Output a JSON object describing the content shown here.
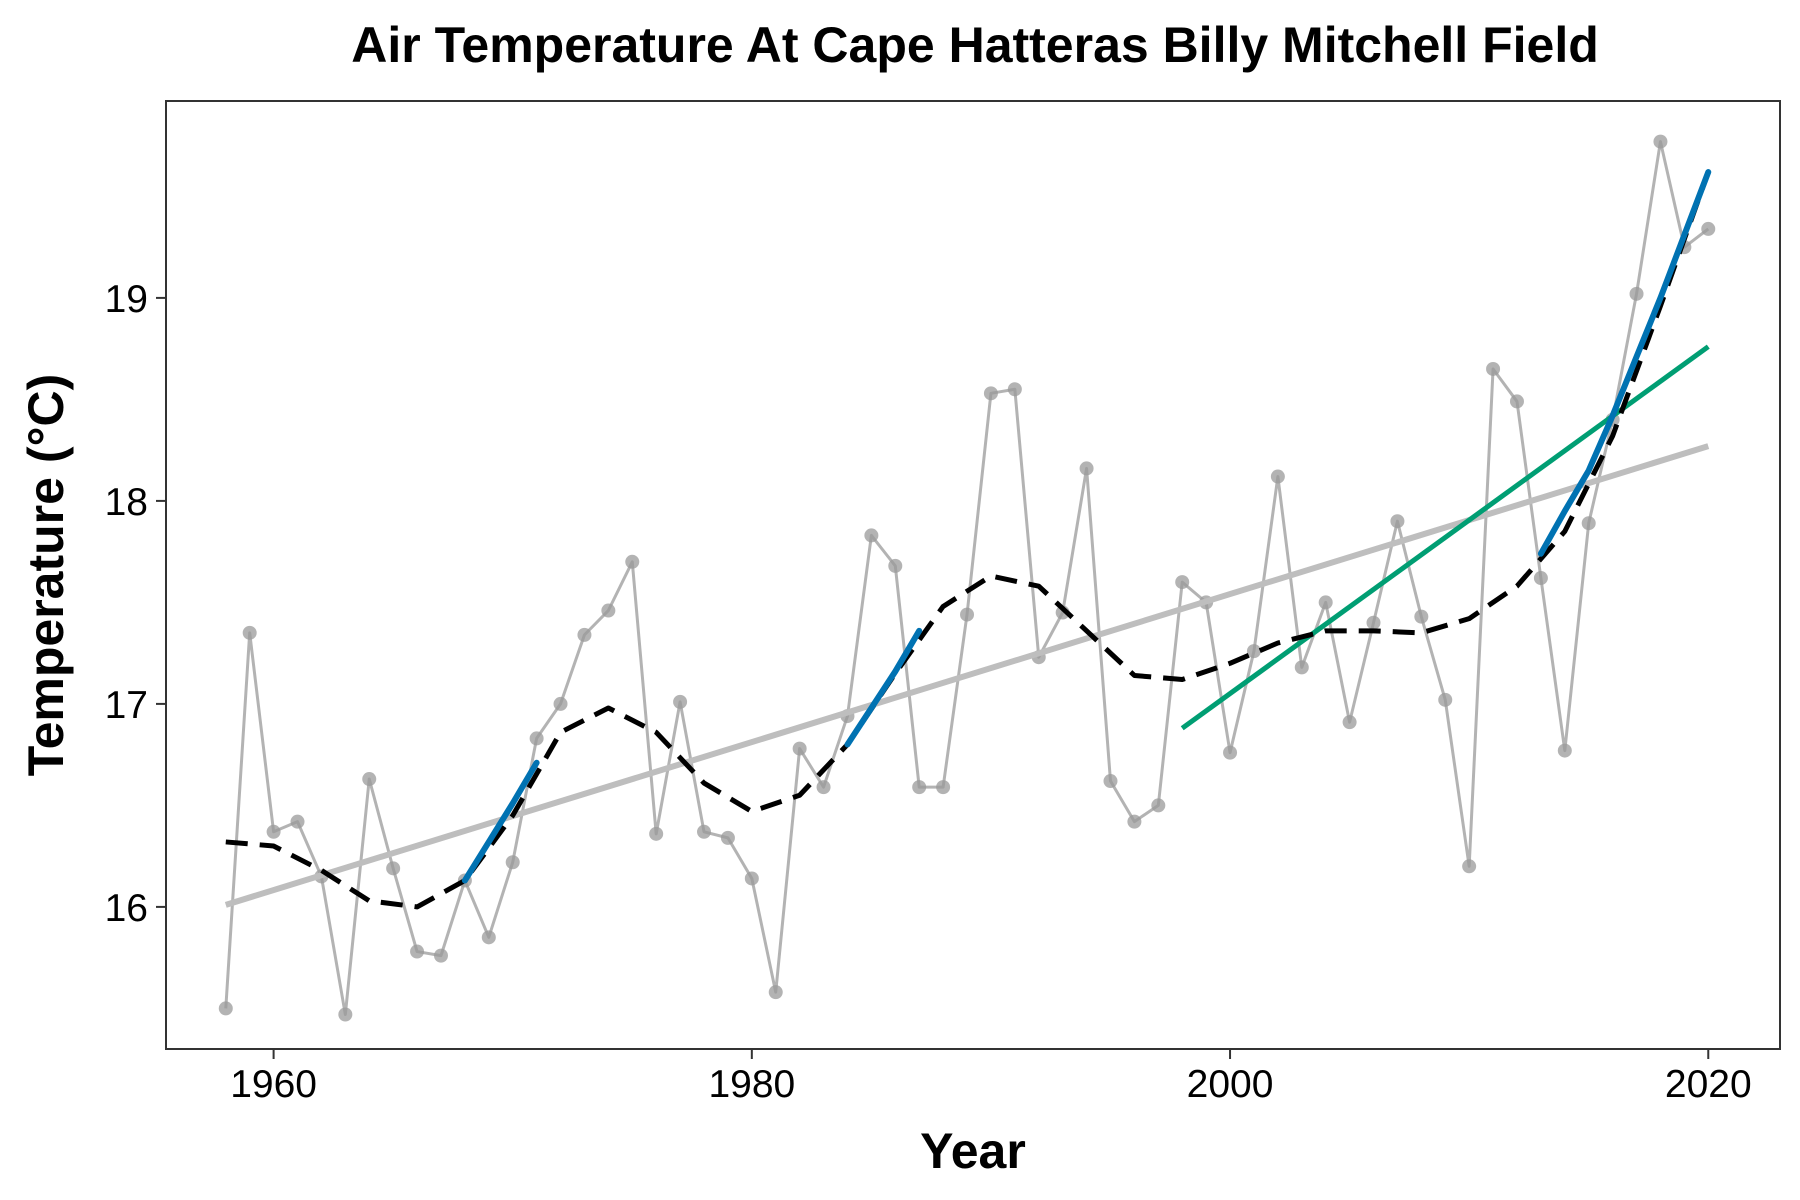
{
  "chart_data": {
    "type": "line",
    "title": "Air Temperature At Cape Hatteras Billy Mitchell Field",
    "xlabel": "Year",
    "ylabel": "Temperature (°C)",
    "xlim": [
      1955.5,
      2023
    ],
    "ylim": [
      15.3,
      19.97
    ],
    "x_ticks": [
      1960,
      1980,
      2000,
      2020
    ],
    "y_ticks": [
      16,
      17,
      18,
      19
    ],
    "grid": false,
    "legend": "none",
    "colors": {
      "observed": "#999999",
      "smooth": "#000000",
      "significant_increase": "#0072B2",
      "recent_trend": "#009E73",
      "long_term_trend": "#BEBEBE",
      "frame": "#333333"
    },
    "series": [
      {
        "key": "observed",
        "x": [
          1958,
          1959,
          1960,
          1961,
          1962,
          1963,
          1964,
          1965,
          1966,
          1967,
          1968,
          1969,
          1970,
          1971,
          1972,
          1973,
          1974,
          1975,
          1976,
          1977,
          1978,
          1979,
          1980,
          1981,
          1982,
          1983,
          1984,
          1985,
          1986,
          1987,
          1988,
          1989,
          1990,
          1991,
          1992,
          1993,
          1994,
          1995,
          1996,
          1997,
          1998,
          1999,
          2000,
          2001,
          2002,
          2003,
          2004,
          2005,
          2006,
          2007,
          2008,
          2009,
          2010,
          2011,
          2012,
          2013,
          2014,
          2015,
          2016,
          2017,
          2018,
          2019,
          2020
        ],
        "values": [
          15.5,
          17.35,
          16.37,
          16.42,
          16.15,
          15.47,
          16.63,
          16.19,
          15.78,
          15.76,
          16.13,
          15.85,
          16.22,
          16.83,
          17.0,
          17.34,
          17.46,
          17.7,
          16.36,
          17.01,
          16.37,
          16.34,
          16.14,
          15.58,
          16.78,
          16.59,
          16.94,
          17.83,
          17.68,
          16.59,
          16.59,
          17.44,
          18.53,
          18.55,
          17.23,
          17.45,
          18.16,
          16.62,
          16.42,
          16.5,
          17.6,
          17.5,
          16.76,
          17.26,
          18.12,
          17.18,
          17.5,
          16.91,
          17.4,
          17.9,
          17.43,
          17.02,
          16.2,
          18.65,
          18.49,
          17.62,
          16.77,
          17.89,
          18.4,
          19.02,
          19.77,
          19.25,
          19.34
        ]
      },
      {
        "key": "smooth",
        "x": [
          1958,
          1960,
          1962,
          1964,
          1966,
          1968,
          1970,
          1972,
          1974,
          1976,
          1978,
          1980,
          1982,
          1984,
          1986,
          1988,
          1990,
          1992,
          1994,
          1996,
          1998,
          2000,
          2002,
          2004,
          2006,
          2008,
          2010,
          2012,
          2014,
          2016,
          2018,
          2020
        ],
        "values": [
          16.32,
          16.3,
          16.18,
          16.03,
          16.0,
          16.13,
          16.45,
          16.86,
          16.98,
          16.86,
          16.61,
          16.47,
          16.55,
          16.8,
          17.15,
          17.48,
          17.63,
          17.58,
          17.36,
          17.14,
          17.12,
          17.2,
          17.3,
          17.36,
          17.36,
          17.35,
          17.42,
          17.58,
          17.85,
          18.32,
          18.96,
          19.62
        ]
      },
      {
        "key": "significant_increase",
        "segments": [
          {
            "x": [
              1968,
              1969,
              1970,
              1971
            ],
            "values": [
              16.13,
              16.32,
              16.51,
              16.71
            ]
          },
          {
            "x": [
              1984,
              1985,
              1986,
              1987
            ],
            "values": [
              16.8,
              16.98,
              17.16,
              17.36
            ]
          },
          {
            "x": [
              2013,
              2014,
              2015,
              2016,
              2017,
              2018,
              2019,
              2020
            ],
            "values": [
              17.74,
              17.95,
              18.15,
              18.42,
              18.71,
              19.0,
              19.31,
              19.62
            ]
          }
        ]
      },
      {
        "key": "recent_trend",
        "x": [
          1998,
          2020
        ],
        "values": [
          16.88,
          18.76
        ]
      },
      {
        "key": "long_term_trend",
        "x": [
          1958,
          2020
        ],
        "values": [
          16.01,
          18.27
        ]
      }
    ]
  }
}
